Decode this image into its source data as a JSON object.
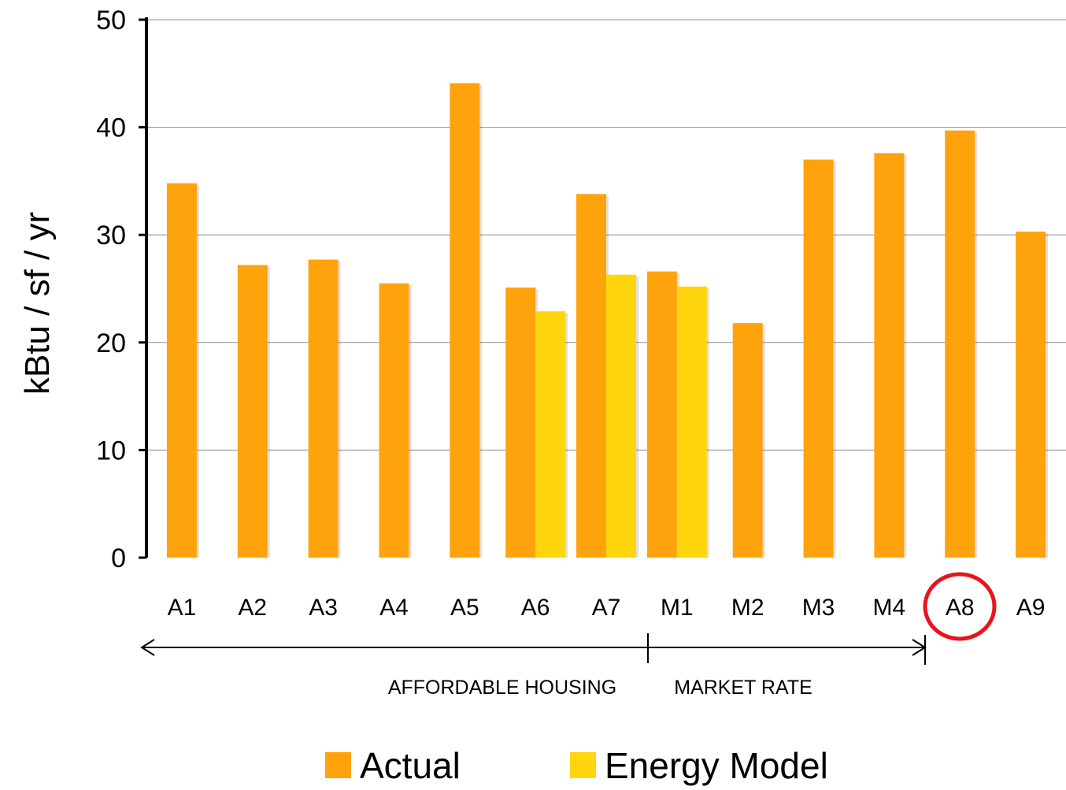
{
  "chart_data": {
    "type": "bar",
    "title": "",
    "xlabel": "",
    "ylabel": "kBtu / sf / yr",
    "ylim": [
      0,
      50
    ],
    "yticks": [
      0,
      10,
      20,
      30,
      40,
      50
    ],
    "grid": true,
    "legend_position": "bottom",
    "categories": [
      "A1",
      "A2",
      "A3",
      "A4",
      "A5",
      "A6",
      "A7",
      "M1",
      "M2",
      "M3",
      "M4",
      "A8",
      "A9"
    ],
    "series": [
      {
        "name": "Actual",
        "color": "#ffa30d",
        "values": [
          34.8,
          27.2,
          27.7,
          25.5,
          44.1,
          25.1,
          33.8,
          26.6,
          21.8,
          37.0,
          37.6,
          39.7,
          30.3
        ]
      },
      {
        "name": "Energy Model",
        "color": "#ffd60d",
        "values": [
          null,
          null,
          null,
          null,
          null,
          22.9,
          26.3,
          25.2,
          null,
          null,
          null,
          null,
          null
        ]
      }
    ],
    "annotations": {
      "group_left_label": "AFFORDABLE HOUSING",
      "group_right_label": "MARKET RATE",
      "highlighted_category": "A8",
      "highlight_color": "#e8141c"
    }
  }
}
